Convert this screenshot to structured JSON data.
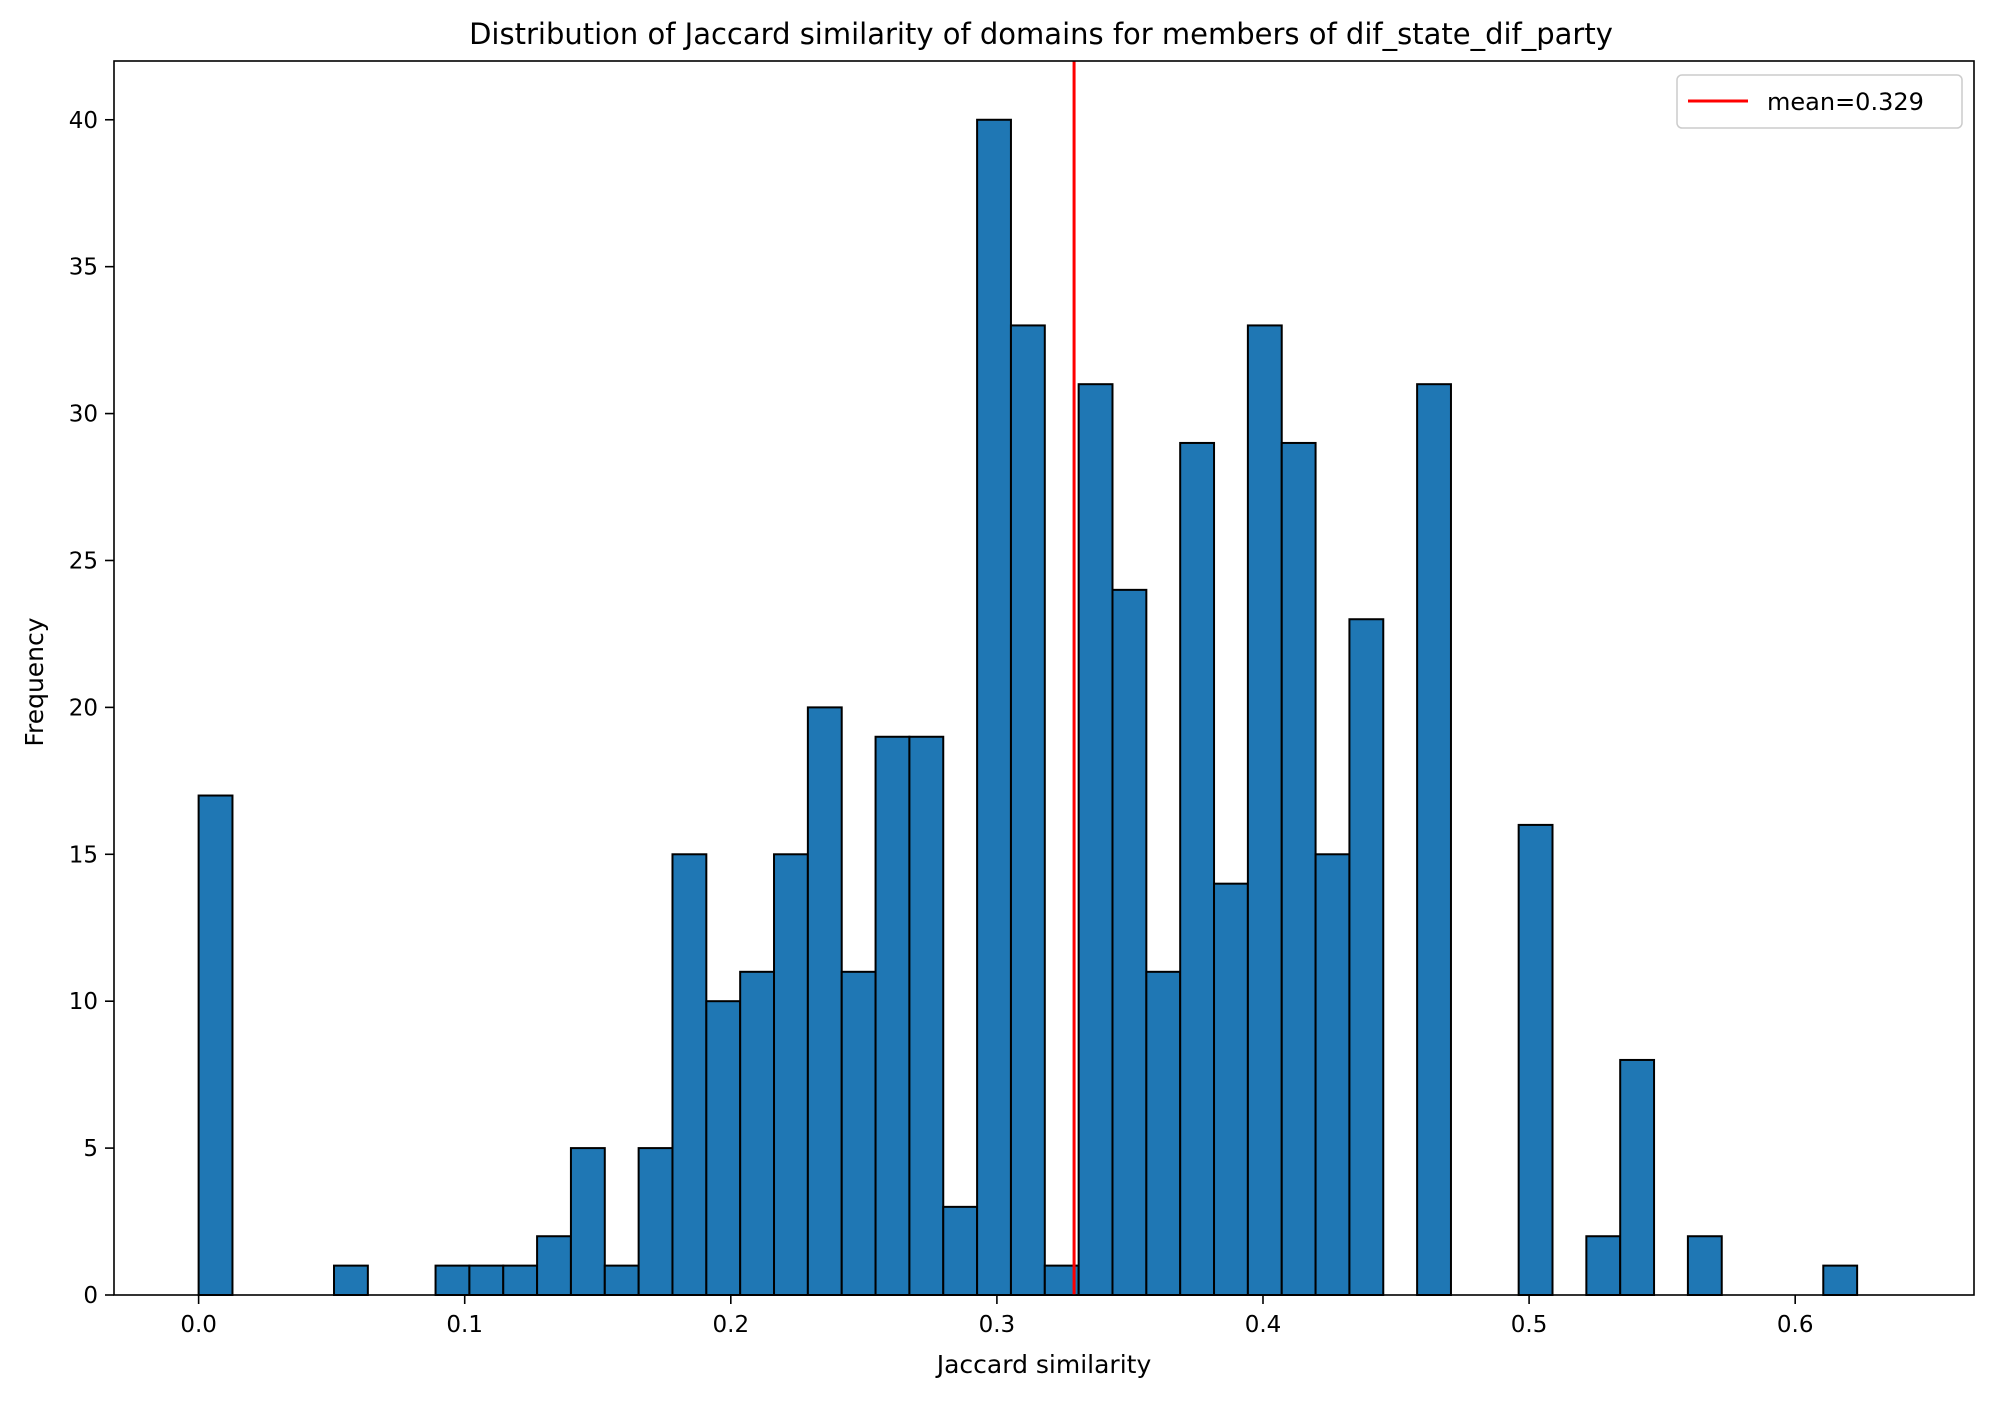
{
  "chart_data": {
    "type": "bar",
    "title": "Distribution of Jaccard similarity of domains for members of dif_state_dif_party",
    "xlabel": "Jaccard similarity",
    "ylabel": "Frequency",
    "xlim": [
      -0.0318,
      0.6672
    ],
    "ylim": [
      0,
      42
    ],
    "x_ticks": [
      0.0,
      0.1,
      0.2,
      0.3,
      0.4,
      0.5,
      0.6
    ],
    "x_tick_labels": [
      "0.0",
      "0.1",
      "0.2",
      "0.3",
      "0.4",
      "0.5",
      "0.6"
    ],
    "y_ticks": [
      0,
      5,
      10,
      15,
      20,
      25,
      30,
      35,
      40
    ],
    "y_tick_labels": [
      "0",
      "5",
      "10",
      "15",
      "20",
      "25",
      "30",
      "35",
      "40"
    ],
    "bin_start": 0.0,
    "bin_width": 0.01272,
    "values": [
      17,
      0,
      0,
      0,
      1,
      0,
      0,
      1,
      1,
      1,
      2,
      5,
      1,
      5,
      15,
      10,
      11,
      15,
      20,
      11,
      19,
      19,
      3,
      40,
      33,
      1,
      31,
      24,
      11,
      29,
      14,
      33,
      29,
      15,
      23,
      0,
      31,
      0,
      0,
      16,
      0,
      2,
      8,
      0,
      2,
      0,
      0,
      0,
      1
    ],
    "bar_color": "#1f77b4",
    "edge_color": "#000000",
    "mean_line": {
      "x": 0.329,
      "color": "#ff0000",
      "label": "mean=0.329"
    },
    "legend": {
      "position": "upper-right",
      "entries": [
        "mean=0.329"
      ]
    },
    "grid": false
  }
}
